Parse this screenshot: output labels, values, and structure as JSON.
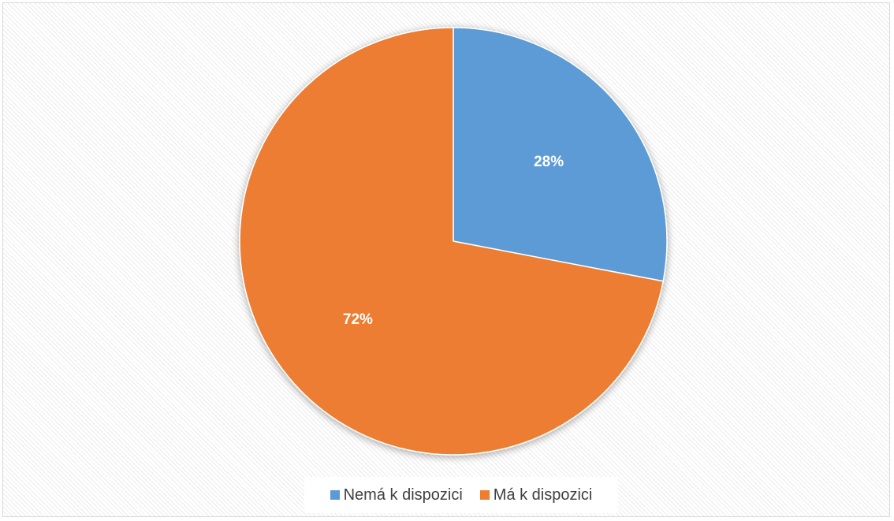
{
  "chart_data": {
    "type": "pie",
    "categories": [
      "Nemá k dispozici",
      "Má k dispozici"
    ],
    "values": [
      28,
      72
    ],
    "data_labels": [
      "28%",
      "72%"
    ],
    "colors": [
      "#5b9bd5",
      "#ed7d31"
    ],
    "label_color": "#ffffff",
    "legend_position": "bottom",
    "title": ""
  },
  "legend": {
    "items": [
      {
        "label": "Nemá k dispozici",
        "color": "#5b9bd5"
      },
      {
        "label": "Má k dispozici",
        "color": "#ed7d31"
      }
    ]
  }
}
